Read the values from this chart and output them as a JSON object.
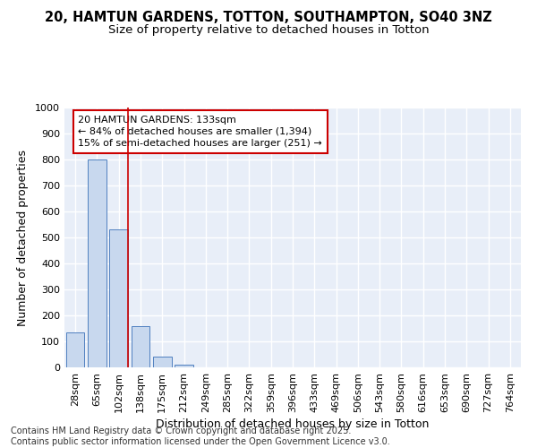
{
  "title_line1": "20, HAMTUN GARDENS, TOTTON, SOUTHAMPTON, SO40 3NZ",
  "title_line2": "Size of property relative to detached houses in Totton",
  "xlabel": "Distribution of detached houses by size in Totton",
  "ylabel": "Number of detached properties",
  "categories": [
    "28sqm",
    "65sqm",
    "102sqm",
    "138sqm",
    "175sqm",
    "212sqm",
    "249sqm",
    "285sqm",
    "322sqm",
    "359sqm",
    "396sqm",
    "433sqm",
    "469sqm",
    "506sqm",
    "543sqm",
    "580sqm",
    "616sqm",
    "653sqm",
    "690sqm",
    "727sqm",
    "764sqm"
  ],
  "values": [
    135,
    800,
    530,
    160,
    40,
    12,
    0,
    0,
    0,
    0,
    0,
    0,
    0,
    0,
    0,
    0,
    0,
    0,
    0,
    0,
    0
  ],
  "bar_color": "#c8d8ee",
  "bar_edge_color": "#5080c0",
  "vline_color": "#cc0000",
  "annotation_text": "20 HAMTUN GARDENS: 133sqm\n← 84% of detached houses are smaller (1,394)\n15% of semi-detached houses are larger (251) →",
  "annotation_box_facecolor": "white",
  "annotation_box_edgecolor": "#cc0000",
  "ylim": [
    0,
    1000
  ],
  "yticks": [
    0,
    100,
    200,
    300,
    400,
    500,
    600,
    700,
    800,
    900,
    1000
  ],
  "background_color": "#e8eef8",
  "grid_color": "#ffffff",
  "footer_line1": "Contains HM Land Registry data © Crown copyright and database right 2025.",
  "footer_line2": "Contains public sector information licensed under the Open Government Licence v3.0.",
  "title_fontsize": 10.5,
  "subtitle_fontsize": 9.5,
  "axis_label_fontsize": 9,
  "tick_fontsize": 8,
  "annotation_fontsize": 8,
  "footer_fontsize": 7
}
